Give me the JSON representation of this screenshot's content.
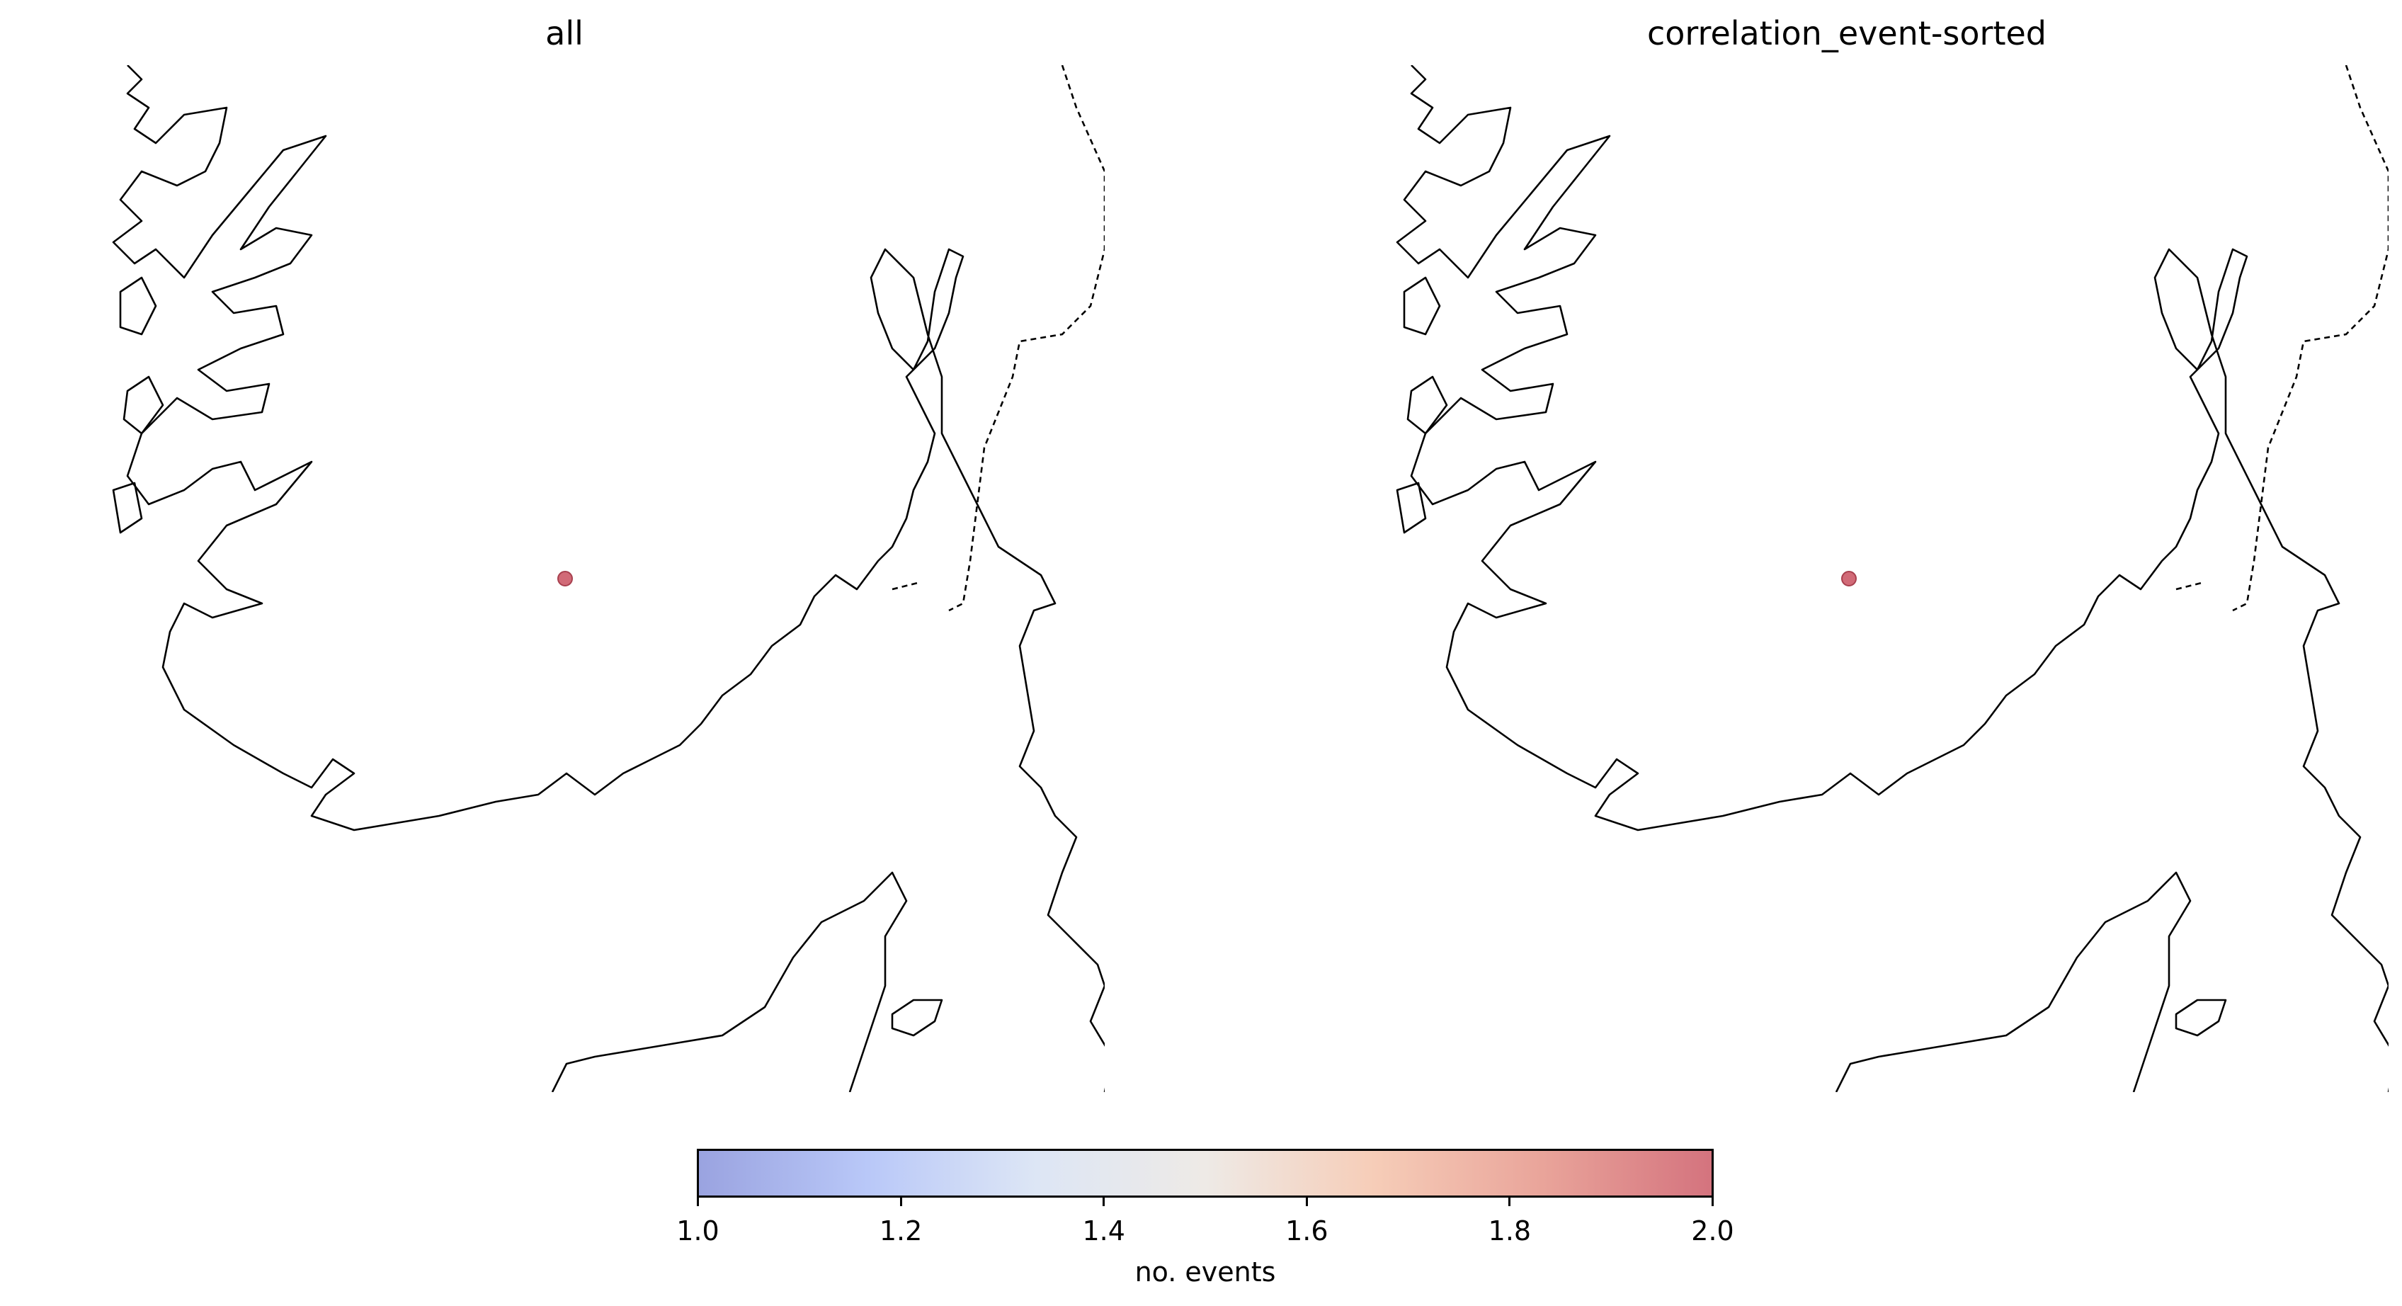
{
  "panels": [
    {
      "title": "all"
    },
    {
      "title": "correlation_event-sorted"
    }
  ],
  "colorbar": {
    "label": "no. events",
    "ticks": [
      "1.0",
      "1.2",
      "1.4",
      "1.6",
      "1.8",
      "2.0"
    ],
    "range": [
      1.0,
      2.0
    ],
    "colors": [
      "#9aa3e0",
      "#b9c8f8",
      "#dde6f5",
      "#eeeae6",
      "#f6cdb8",
      "#e9a49a",
      "#d4737e"
    ]
  },
  "event": {
    "count": 2,
    "color": "#c9505f"
  }
}
